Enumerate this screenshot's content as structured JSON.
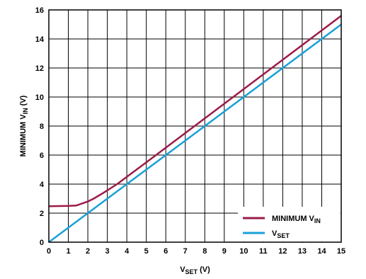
{
  "chart_data": {
    "type": "line",
    "xlabel": {
      "main": "V",
      "sub": "SET",
      "unit": " (V)"
    },
    "ylabel": {
      "main": "MINIMUM V",
      "sub": "IN",
      "unit": " (V)"
    },
    "xlim": [
      0,
      15
    ],
    "ylim": [
      0,
      16
    ],
    "xticks": [
      "0",
      "1",
      "2",
      "3",
      "4",
      "5",
      "6",
      "7",
      "8",
      "9",
      "10",
      "11",
      "12",
      "13",
      "14",
      "15"
    ],
    "yticks": [
      "0",
      "2",
      "4",
      "6",
      "8",
      "10",
      "12",
      "14",
      "16"
    ],
    "grid": true,
    "legend_position": "bottom-right",
    "series": [
      {
        "name": {
          "main": "MINIMUM V",
          "sub": "IN"
        },
        "color": "#9b1b4a",
        "x": [
          0,
          1,
          1.4,
          2,
          2.3,
          2.8,
          3.5,
          4,
          5,
          15
        ],
        "y": [
          2.48,
          2.5,
          2.52,
          2.8,
          3.0,
          3.4,
          4.0,
          4.5,
          5.5,
          15.6
        ]
      },
      {
        "name": {
          "main": "V",
          "sub": "SET"
        },
        "color": "#1aa0d8",
        "x": [
          0,
          15
        ],
        "y": [
          0,
          15
        ]
      }
    ]
  }
}
